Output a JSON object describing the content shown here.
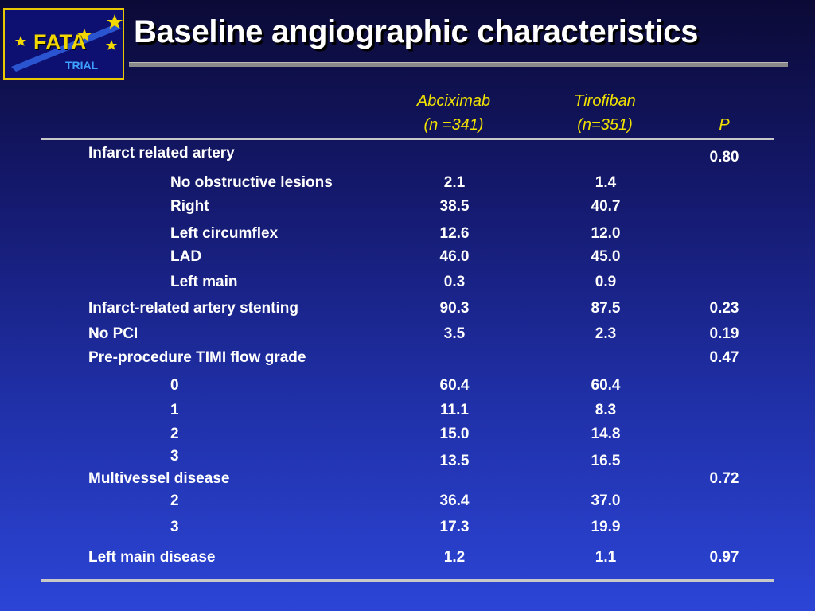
{
  "logo": {
    "name": "FATA",
    "sub": "TRIAL"
  },
  "title": "Baseline angiographic characteristics",
  "columns": {
    "c1_line1": "Abciximab",
    "c1_line2": "(n =341)",
    "c2_line1": "Tirofiban",
    "c2_line2": "(n=351)",
    "p": "P"
  },
  "rows": [
    {
      "label": "Infarct related artery",
      "abciximab": "",
      "tirofiban": "",
      "p": "0.80"
    },
    {
      "label": "No obstructive lesions",
      "abciximab": "2.1",
      "tirofiban": "1.4",
      "p": ""
    },
    {
      "label": "Right",
      "abciximab": "38.5",
      "tirofiban": "40.7",
      "p": ""
    },
    {
      "label": "Left circumflex",
      "abciximab": "12.6",
      "tirofiban": "12.0",
      "p": ""
    },
    {
      "label": "LAD",
      "abciximab": "46.0",
      "tirofiban": "45.0",
      "p": ""
    },
    {
      "label": "Left main",
      "abciximab": "0.3",
      "tirofiban": "0.9",
      "p": ""
    },
    {
      "label": "Infarct-related artery stenting",
      "abciximab": "90.3",
      "tirofiban": "87.5",
      "p": "0.23"
    },
    {
      "label": "No PCI",
      "abciximab": "3.5",
      "tirofiban": "2.3",
      "p": "0.19"
    },
    {
      "label": "Pre-procedure TIMI flow grade",
      "abciximab": "",
      "tirofiban": "",
      "p": "0.47"
    },
    {
      "label": "0",
      "abciximab": "60.4",
      "tirofiban": "60.4",
      "p": ""
    },
    {
      "label": "1",
      "abciximab": "11.1",
      "tirofiban": "8.3",
      "p": ""
    },
    {
      "label": "2",
      "abciximab": "15.0",
      "tirofiban": "14.8",
      "p": ""
    },
    {
      "label": "3",
      "abciximab": "13.5",
      "tirofiban": "16.5",
      "p": ""
    },
    {
      "label": "Multivessel disease",
      "abciximab": "",
      "tirofiban": "",
      "p": "0.72"
    },
    {
      "label": "2",
      "abciximab": "36.4",
      "tirofiban": "37.0",
      "p": ""
    },
    {
      "label": "3",
      "abciximab": "17.3",
      "tirofiban": "19.9",
      "p": ""
    },
    {
      "label": "Left main disease",
      "abciximab": "1.2",
      "tirofiban": "1.1",
      "p": "0.97"
    }
  ]
}
